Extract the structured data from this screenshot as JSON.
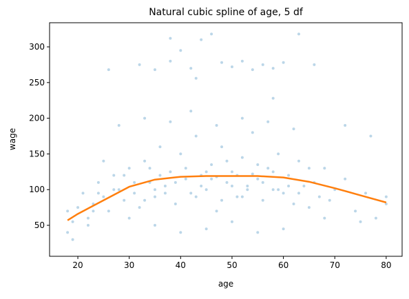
{
  "chart_data": {
    "type": "scatter",
    "title": "Natural cubic spline of age, 5 df",
    "x_label": "age",
    "y_label": "wage",
    "xlim": [
      14.5,
      83.1
    ],
    "ylim": [
      6.6,
      333.8
    ],
    "xticks": [
      20,
      30,
      40,
      50,
      60,
      70,
      80
    ],
    "yticks": [
      50,
      100,
      150,
      200,
      250,
      300
    ],
    "grid": false,
    "series": [
      {
        "kind": "scatter",
        "color": "#1f77b4",
        "x": [
          18,
          19,
          20,
          21,
          22,
          23,
          24,
          25,
          26,
          27,
          28,
          29,
          30,
          31,
          32,
          33,
          34,
          35,
          36,
          37,
          38,
          39,
          40,
          41,
          42,
          43,
          44,
          45,
          46,
          47,
          48,
          49,
          50,
          51,
          52,
          53,
          54,
          55,
          56,
          57,
          58,
          59,
          60,
          61,
          62,
          63,
          64,
          65,
          66,
          67,
          68,
          69,
          70,
          72,
          74,
          76,
          78,
          80,
          18,
          19,
          22,
          25,
          28,
          30,
          33,
          35,
          38,
          40,
          42,
          45,
          47,
          50,
          52,
          55,
          57,
          60,
          62,
          65,
          68,
          72,
          75,
          77,
          80,
          32,
          35,
          38,
          40,
          42,
          44,
          46,
          48,
          50,
          52,
          54,
          56,
          58,
          60,
          63,
          66,
          38,
          26,
          58,
          43,
          35,
          36,
          37,
          39,
          41,
          43,
          44,
          46,
          48,
          49,
          51,
          53,
          55,
          56,
          58,
          59,
          61,
          63,
          31,
          29,
          27,
          24,
          23,
          33,
          34,
          45,
          47,
          50,
          52,
          54
        ],
        "y": [
          70,
          55,
          75,
          95,
          60,
          80,
          110,
          90,
          70,
          120,
          100,
          85,
          130,
          95,
          75,
          140,
          110,
          90,
          160,
          105,
          125,
          80,
          150,
          115,
          95,
          175,
          120,
          100,
          135,
          70,
          160,
          110,
          125,
          90,
          145,
          105,
          180,
          115,
          85,
          130,
          100,
          150,
          95,
          120,
          80,
          140,
          105,
          75,
          110,
          90,
          130,
          85,
          100,
          115,
          70,
          95,
          60,
          90,
          40,
          30,
          50,
          140,
          190,
          60,
          200,
          50,
          195,
          40,
          210,
          45,
          190,
          55,
          200,
          40,
          195,
          45,
          185,
          130,
          60,
          190,
          55,
          175,
          80,
          275,
          268,
          280,
          295,
          270,
          310,
          318,
          278,
          272,
          280,
          268,
          275,
          270,
          278,
          318,
          275,
          312,
          268,
          228,
          256,
          100,
          120,
          95,
          110,
          130,
          90,
          105,
          115,
          85,
          140,
          120,
          100,
          135,
          110,
          125,
          100,
          105,
          95,
          110,
          120,
          100,
          95,
          70,
          85,
          130,
          125,
          118,
          105,
          90,
          122
        ]
      },
      {
        "kind": "line",
        "color": "#ff7f0e",
        "x": [
          18,
          20,
          25,
          30,
          35,
          40,
          45,
          50,
          55,
          60,
          65,
          70,
          75,
          80
        ],
        "y": [
          57,
          66,
          85,
          104,
          114,
          118,
          119,
          119,
          119,
          117,
          111,
          102,
          92,
          82
        ]
      }
    ]
  }
}
